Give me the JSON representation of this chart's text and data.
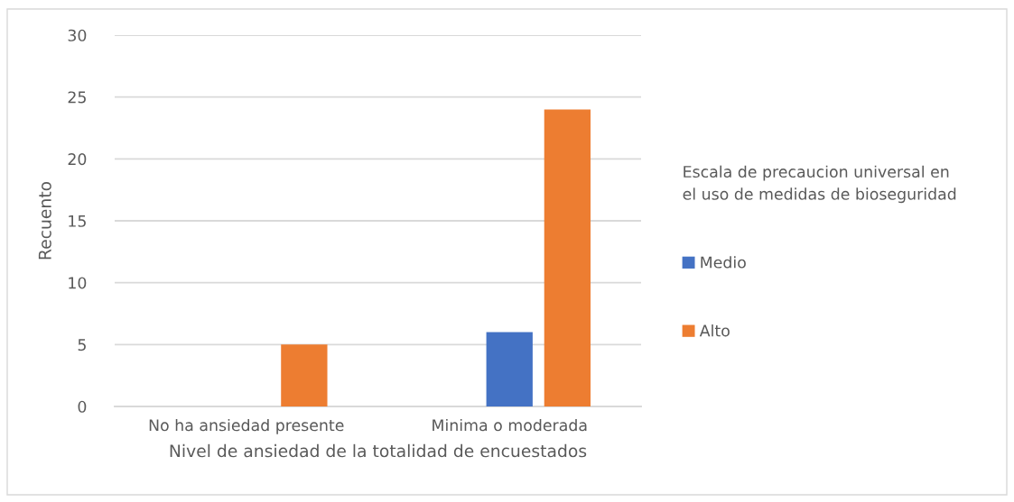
{
  "chart_data": {
    "type": "bar",
    "xlabel": "Nivel de ansiedad de la totalidad de encuestados",
    "ylabel": "Recuento",
    "legend_title": "Escala de precaucion universal en\nel uso de medidas de bioseguridad",
    "categories": [
      "No ha ansiedad presente",
      "Minima o moderada"
    ],
    "series": [
      {
        "name": "Medio",
        "color": "#4472c4",
        "values": [
          null,
          6
        ]
      },
      {
        "name": "Alto",
        "color": "#ed7d31",
        "values": [
          5,
          24
        ]
      }
    ],
    "ylim": [
      0,
      30
    ],
    "yticks": [
      0,
      5,
      10,
      15,
      20,
      25,
      30
    ],
    "grid": "y",
    "legend": "right"
  }
}
